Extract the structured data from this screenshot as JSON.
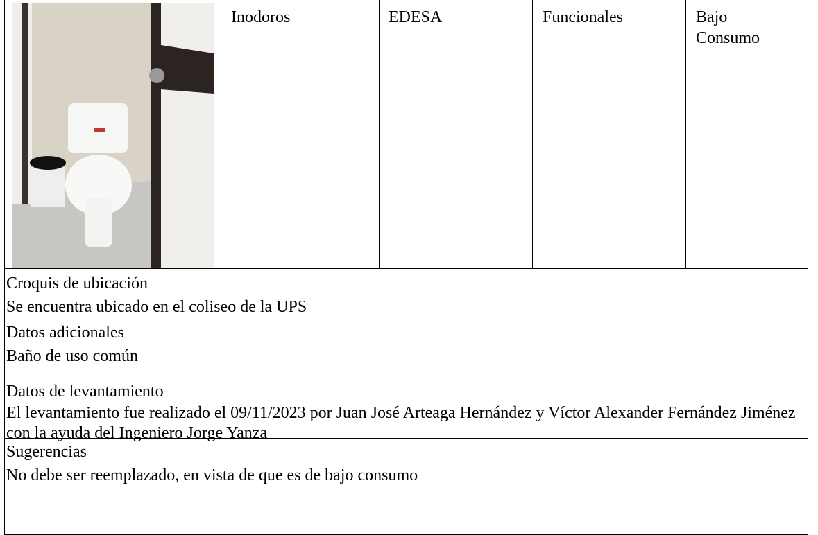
{
  "table": {
    "rows": [
      [
        "Inodoros",
        "EDESA",
        "Funcionales",
        "Bajo Consumo"
      ]
    ]
  },
  "sections": [
    {
      "title": "Croquis de ubicación",
      "text": "Se encuentra ubicado en el coliseo de la UPS"
    },
    {
      "title": "Datos adicionales",
      "text": "Baño de uso común"
    },
    {
      "title": "Datos de levantamiento",
      "text": "El levantamiento fue realizado el 09/11/2023 por Juan José Arteaga Hernández y Víctor Alexander Fernández Jiménez con la ayuda del Ingeniero Jorge Yanza"
    },
    {
      "title": "Sugerencias",
      "text": "No debe ser reemplazado, en vista de que es de bajo consumo"
    }
  ]
}
